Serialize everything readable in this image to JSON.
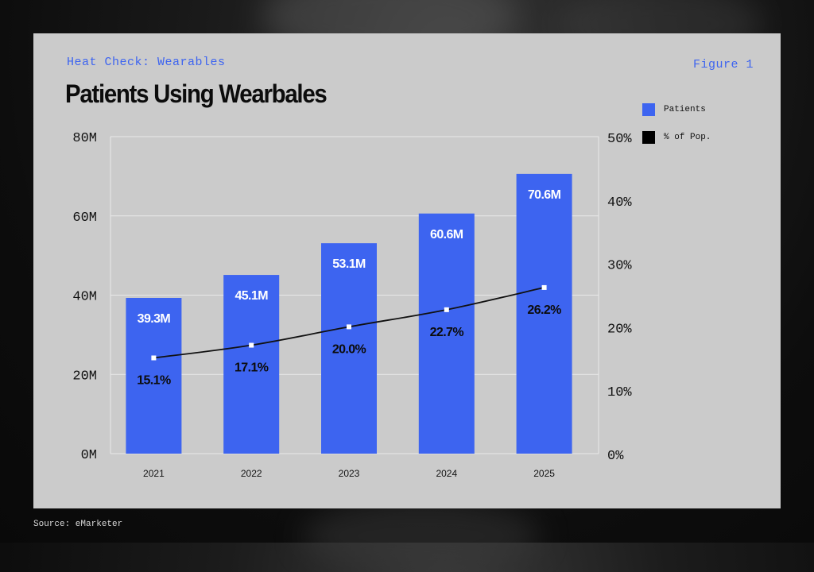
{
  "header": {
    "kicker": "Heat Check: Wearables",
    "figure_label": "Figure 1",
    "title": "Patients Using Wearbales"
  },
  "source": "Source: eMarketer",
  "colors": {
    "bar": "#3d64f0",
    "line": "#111111",
    "card": "#cbcbcb"
  },
  "legend": [
    {
      "label": "Patients",
      "color": "#3d64f0"
    },
    {
      "label": "% of Pop.",
      "color": "#000000"
    }
  ],
  "chart_data": {
    "type": "bar",
    "title": "Patients Using Wearbales",
    "categories": [
      "2021",
      "2022",
      "2023",
      "2024",
      "2025"
    ],
    "series": [
      {
        "name": "Patients",
        "type": "bar",
        "axis": "left",
        "values": [
          39.3,
          45.1,
          53.1,
          60.6,
          70.6
        ],
        "labels": [
          "39.3M",
          "45.1M",
          "53.1M",
          "60.6M",
          "70.6M"
        ]
      },
      {
        "name": "% of Pop.",
        "type": "line",
        "axis": "right",
        "values": [
          15.1,
          17.1,
          20.0,
          22.7,
          26.2
        ],
        "labels": [
          "15.1%",
          "17.1%",
          "20.0%",
          "22.7%",
          "26.2%"
        ]
      }
    ],
    "y_left": {
      "min": 0,
      "max": 80,
      "ticks": [
        0,
        20,
        40,
        60,
        80
      ],
      "tick_labels": [
        "0M",
        "20M",
        "40M",
        "60M",
        "80M"
      ]
    },
    "y_right": {
      "min": 0,
      "max": 50,
      "ticks": [
        0,
        10,
        20,
        30,
        40,
        50
      ],
      "tick_labels": [
        "0%",
        "10%",
        "20%",
        "30%",
        "40%",
        "50%"
      ]
    },
    "grid": true,
    "legend_position": "right"
  }
}
